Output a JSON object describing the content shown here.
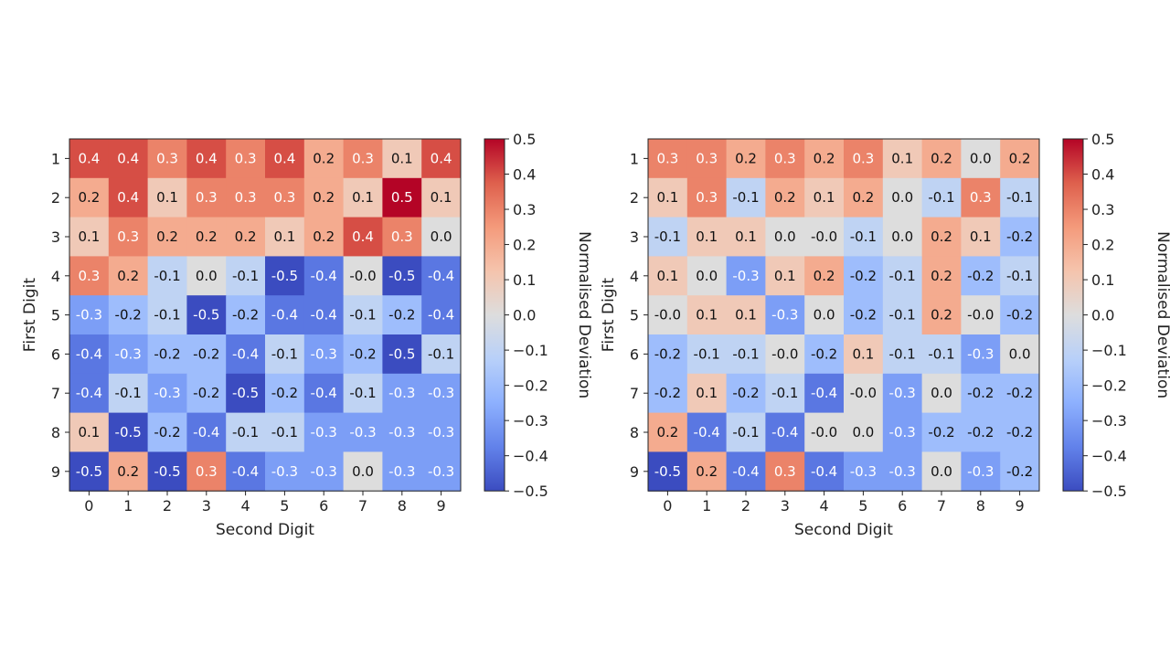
{
  "chart_data": [
    {
      "type": "heatmap",
      "title": "",
      "xlabel": "Second Digit",
      "ylabel": "First Digit",
      "x_categories": [
        "0",
        "1",
        "2",
        "3",
        "4",
        "5",
        "6",
        "7",
        "8",
        "9"
      ],
      "y_categories": [
        "1",
        "2",
        "3",
        "4",
        "5",
        "6",
        "7",
        "8",
        "9"
      ],
      "values": [
        [
          0.4,
          0.4,
          0.3,
          0.4,
          0.3,
          0.4,
          0.2,
          0.3,
          0.1,
          0.4
        ],
        [
          0.2,
          0.4,
          0.1,
          0.3,
          0.3,
          0.3,
          0.2,
          0.1,
          0.5,
          0.1
        ],
        [
          0.1,
          0.3,
          0.2,
          0.2,
          0.2,
          0.1,
          0.2,
          0.4,
          0.3,
          0.0
        ],
        [
          0.3,
          0.2,
          -0.1,
          0.0,
          -0.1,
          -0.5,
          -0.4,
          -0.0,
          -0.5,
          -0.4
        ],
        [
          -0.3,
          -0.2,
          -0.1,
          -0.5,
          -0.2,
          -0.4,
          -0.4,
          -0.1,
          -0.2,
          -0.4
        ],
        [
          -0.4,
          -0.3,
          -0.2,
          -0.2,
          -0.4,
          -0.1,
          -0.3,
          -0.2,
          -0.5,
          -0.1
        ],
        [
          -0.4,
          -0.1,
          -0.3,
          -0.2,
          -0.5,
          -0.2,
          -0.4,
          -0.1,
          -0.3,
          -0.3
        ],
        [
          0.1,
          -0.5,
          -0.2,
          -0.4,
          -0.1,
          -0.1,
          -0.3,
          -0.3,
          -0.3,
          -0.3
        ],
        [
          -0.5,
          0.2,
          -0.5,
          0.3,
          -0.4,
          -0.3,
          -0.3,
          0.0,
          -0.3,
          -0.3
        ]
      ],
      "cell_labels": [
        [
          "0.4",
          "0.4",
          "0.3",
          "0.4",
          "0.3",
          "0.4",
          "0.2",
          "0.3",
          "0.1",
          "0.4"
        ],
        [
          "0.2",
          "0.4",
          "0.1",
          "0.3",
          "0.3",
          "0.3",
          "0.2",
          "0.1",
          "0.5",
          "0.1"
        ],
        [
          "0.1",
          "0.3",
          "0.2",
          "0.2",
          "0.2",
          "0.1",
          "0.2",
          "0.4",
          "0.3",
          "0.0"
        ],
        [
          "0.3",
          "0.2",
          "-0.1",
          "0.0",
          "-0.1",
          "-0.5",
          "-0.4",
          "-0.0",
          "-0.5",
          "-0.4"
        ],
        [
          "-0.3",
          "-0.2",
          "-0.1",
          "-0.5",
          "-0.2",
          "-0.4",
          "-0.4",
          "-0.1",
          "-0.2",
          "-0.4"
        ],
        [
          "-0.4",
          "-0.3",
          "-0.2",
          "-0.2",
          "-0.4",
          "-0.1",
          "-0.3",
          "-0.2",
          "-0.5",
          "-0.1"
        ],
        [
          "-0.4",
          "-0.1",
          "-0.3",
          "-0.2",
          "-0.5",
          "-0.2",
          "-0.4",
          "-0.1",
          "-0.3",
          "-0.3"
        ],
        [
          "0.1",
          "-0.5",
          "-0.2",
          "-0.4",
          "-0.1",
          "-0.1",
          "-0.3",
          "-0.3",
          "-0.3",
          "-0.3"
        ],
        [
          "-0.5",
          "0.2",
          "-0.5",
          "0.3",
          "-0.4",
          "-0.3",
          "-0.3",
          "0.0",
          "-0.3",
          "-0.3"
        ]
      ],
      "colorbar": {
        "label": "Normalised Deviation",
        "range": [
          -0.5,
          0.5
        ],
        "ticks": [
          0.5,
          0.4,
          0.3,
          0.2,
          0.1,
          0.0,
          -0.1,
          -0.2,
          -0.3,
          -0.4,
          -0.5
        ],
        "tick_labels": [
          "0.5",
          "0.4",
          "0.3",
          "0.2",
          "0.1",
          "0.0",
          "−0.1",
          "−0.2",
          "−0.3",
          "−0.4",
          "−0.5"
        ],
        "colormap": "coolwarm"
      }
    },
    {
      "type": "heatmap",
      "title": "",
      "xlabel": "Second Digit",
      "ylabel": "First Digit",
      "x_categories": [
        "0",
        "1",
        "2",
        "3",
        "4",
        "5",
        "6",
        "7",
        "8",
        "9"
      ],
      "y_categories": [
        "1",
        "2",
        "3",
        "4",
        "5",
        "6",
        "7",
        "8",
        "9"
      ],
      "values": [
        [
          0.3,
          0.3,
          0.2,
          0.3,
          0.2,
          0.3,
          0.1,
          0.2,
          0.0,
          0.2
        ],
        [
          0.1,
          0.3,
          -0.1,
          0.2,
          0.1,
          0.2,
          0.0,
          -0.1,
          0.3,
          -0.1
        ],
        [
          -0.1,
          0.1,
          0.1,
          0.0,
          -0.0,
          -0.1,
          0.0,
          0.2,
          0.1,
          -0.2
        ],
        [
          0.1,
          0.0,
          -0.3,
          0.1,
          0.2,
          -0.2,
          -0.1,
          0.2,
          -0.2,
          -0.1
        ],
        [
          -0.0,
          0.1,
          0.1,
          -0.3,
          0.0,
          -0.2,
          -0.1,
          0.2,
          -0.0,
          -0.2
        ],
        [
          -0.2,
          -0.1,
          -0.1,
          -0.0,
          -0.2,
          0.1,
          -0.1,
          -0.1,
          -0.3,
          0.0
        ],
        [
          -0.2,
          0.1,
          -0.2,
          -0.1,
          -0.4,
          -0.0,
          -0.3,
          0.0,
          -0.2,
          -0.2
        ],
        [
          0.2,
          -0.4,
          -0.1,
          -0.4,
          -0.0,
          0.0,
          -0.3,
          -0.2,
          -0.2,
          -0.2
        ],
        [
          -0.5,
          0.2,
          -0.4,
          0.3,
          -0.4,
          -0.3,
          -0.3,
          0.0,
          -0.3,
          -0.2
        ]
      ],
      "cell_labels": [
        [
          "0.3",
          "0.3",
          "0.2",
          "0.3",
          "0.2",
          "0.3",
          "0.1",
          "0.2",
          "0.0",
          "0.2"
        ],
        [
          "0.1",
          "0.3",
          "-0.1",
          "0.2",
          "0.1",
          "0.2",
          "0.0",
          "-0.1",
          "0.3",
          "-0.1"
        ],
        [
          "-0.1",
          "0.1",
          "0.1",
          "0.0",
          "-0.0",
          "-0.1",
          "0.0",
          "0.2",
          "0.1",
          "-0.2"
        ],
        [
          "0.1",
          "0.0",
          "-0.3",
          "0.1",
          "0.2",
          "-0.2",
          "-0.1",
          "0.2",
          "-0.2",
          "-0.1"
        ],
        [
          "-0.0",
          "0.1",
          "0.1",
          "-0.3",
          "0.0",
          "-0.2",
          "-0.1",
          "0.2",
          "-0.0",
          "-0.2"
        ],
        [
          "-0.2",
          "-0.1",
          "-0.1",
          "-0.0",
          "-0.2",
          "0.1",
          "-0.1",
          "-0.1",
          "-0.3",
          "0.0"
        ],
        [
          "-0.2",
          "0.1",
          "-0.2",
          "-0.1",
          "-0.4",
          "-0.0",
          "-0.3",
          "0.0",
          "-0.2",
          "-0.2"
        ],
        [
          "0.2",
          "-0.4",
          "-0.1",
          "-0.4",
          "-0.0",
          "0.0",
          "-0.3",
          "-0.2",
          "-0.2",
          "-0.2"
        ],
        [
          "-0.5",
          "0.2",
          "-0.4",
          "0.3",
          "-0.4",
          "-0.3",
          "-0.3",
          "0.0",
          "-0.3",
          "-0.2"
        ]
      ],
      "colorbar": {
        "label": "Normalised Deviation",
        "range": [
          -0.5,
          0.5
        ],
        "ticks": [
          0.5,
          0.4,
          0.3,
          0.2,
          0.1,
          0.0,
          -0.1,
          -0.2,
          -0.3,
          -0.4,
          -0.5
        ],
        "tick_labels": [
          "0.5",
          "0.4",
          "0.3",
          "0.2",
          "0.1",
          "0.0",
          "−0.1",
          "−0.2",
          "−0.3",
          "−0.4",
          "−0.5"
        ],
        "colormap": "coolwarm"
      }
    }
  ],
  "colors": {
    "cool": "#3b4cc0",
    "neutral": "#dddddd",
    "warm": "#b40426"
  }
}
